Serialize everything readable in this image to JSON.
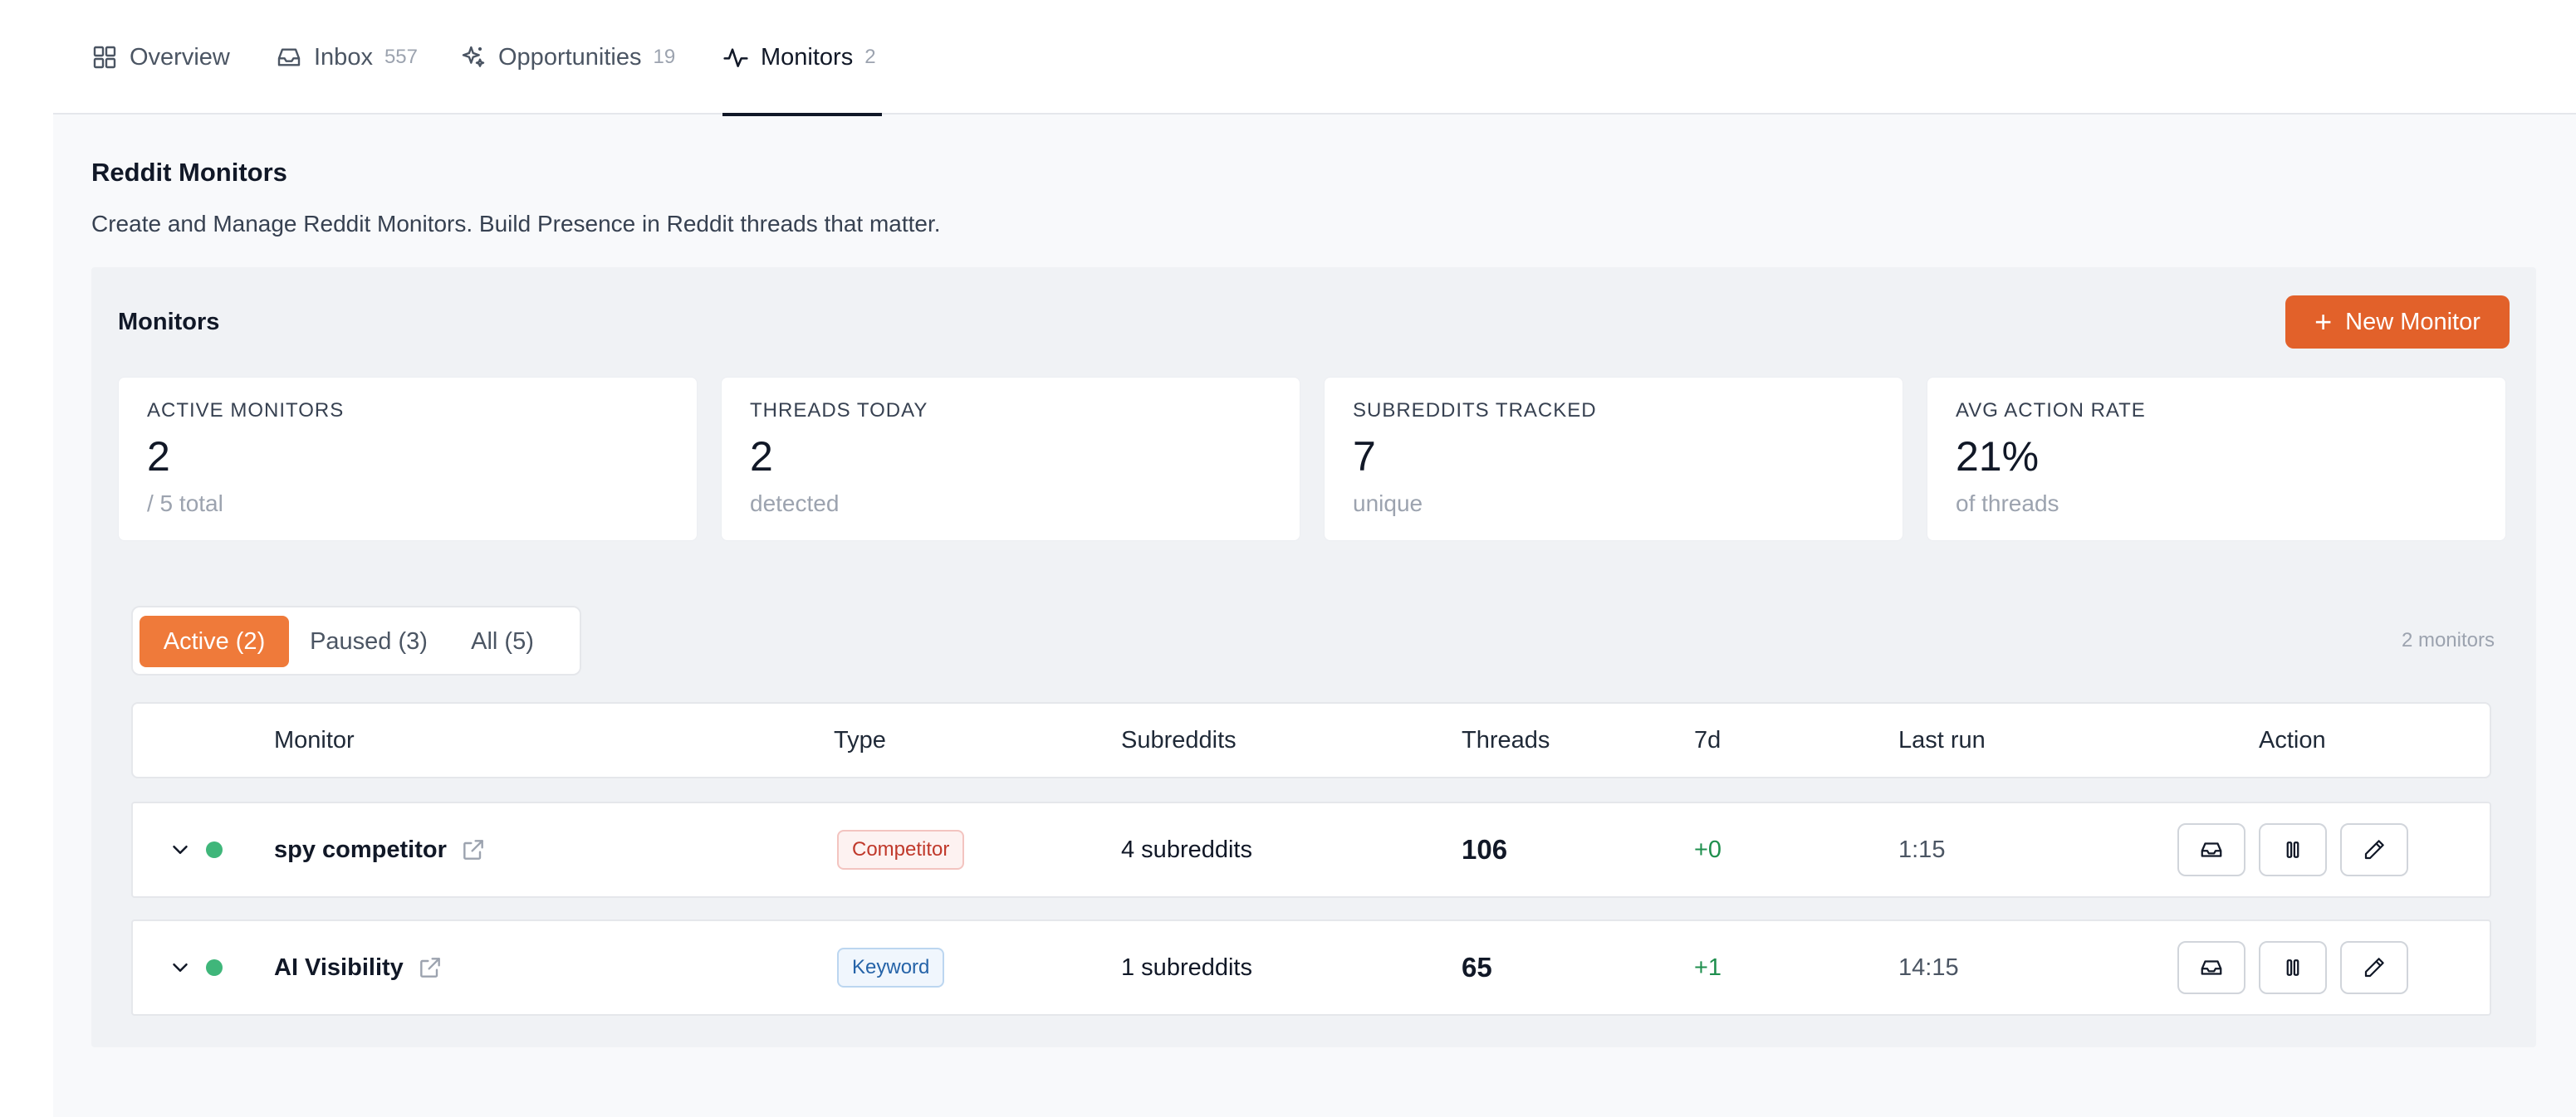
{
  "tabs": [
    {
      "label": "Overview",
      "count": "",
      "icon": "grid-icon"
    },
    {
      "label": "Inbox",
      "count": "557",
      "icon": "inbox-icon"
    },
    {
      "label": "Opportunities",
      "count": "19",
      "icon": "sparkle-icon"
    },
    {
      "label": "Monitors",
      "count": "2",
      "icon": "activity-icon",
      "active": true
    }
  ],
  "page": {
    "title": "Reddit Monitors",
    "subtitle": "Create and Manage Reddit Monitors. Build Presence in Reddit threads that matter."
  },
  "panel": {
    "title": "Monitors",
    "new_button_label": "New Monitor"
  },
  "stats": [
    {
      "label": "ACTIVE MONITORS",
      "value": "2",
      "sub": "/ 5 total"
    },
    {
      "label": "THREADS TODAY",
      "value": "2",
      "sub": "detected"
    },
    {
      "label": "SUBREDDITS TRACKED",
      "value": "7",
      "sub": "unique"
    },
    {
      "label": "AVG ACTION RATE",
      "value": "21%",
      "sub": "of threads"
    }
  ],
  "filters": [
    {
      "label": "Active (2)",
      "active": true
    },
    {
      "label": "Paused (3)"
    },
    {
      "label": "All (5)"
    }
  ],
  "monitor_count": "2 monitors",
  "table": {
    "columns": [
      "Monitor",
      "Type",
      "Subreddits",
      "Threads",
      "7d",
      "Last run",
      "Action"
    ],
    "rows": [
      {
        "name": "spy competitor",
        "type": "Competitor",
        "subreddits": "4 subreddits",
        "threads": "106",
        "delta": "+0",
        "last_run": "1:15"
      },
      {
        "name": "AI Visibility",
        "type": "Keyword",
        "subreddits": "1 subreddits",
        "threads": "65",
        "delta": "+1",
        "last_run": "14:15"
      }
    ]
  },
  "colors": {
    "accent": "#e2612a",
    "active_filter": "#ef7a3a",
    "status_active": "#3fb67a",
    "competitor_badge": "#c0392b",
    "keyword_badge": "#2563a8"
  }
}
